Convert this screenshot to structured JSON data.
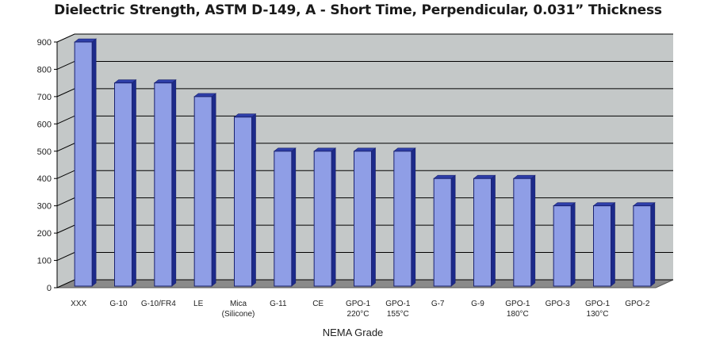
{
  "chart_data": {
    "type": "bar",
    "title": "Dielectric Strength, ASTM D-149, A - Short Time, Perpendicular, 0.031” Thickness",
    "xlabel": "NEMA Grade",
    "ylabel": "",
    "ylim": [
      0,
      900
    ],
    "yticks": [
      "0",
      "100",
      "200",
      "300",
      "400",
      "500",
      "600",
      "700",
      "800",
      "900"
    ],
    "grid": true,
    "categories": [
      [
        "XXX"
      ],
      [
        "G-10"
      ],
      [
        "G-10/FR4"
      ],
      [
        "LE"
      ],
      [
        "Mica",
        "(Silicone)"
      ],
      [
        "G-11"
      ],
      [
        "CE"
      ],
      [
        "GPO-1",
        "220°C"
      ],
      [
        "GPO-1",
        "155°C"
      ],
      [
        "G-7"
      ],
      [
        "G-9"
      ],
      [
        "GPO-1",
        "180°C"
      ],
      [
        "GPO-3"
      ],
      [
        "GPO-1",
        "130°C"
      ],
      [
        "GPO-2"
      ]
    ],
    "values": [
      900,
      750,
      750,
      700,
      625,
      500,
      500,
      500,
      500,
      400,
      400,
      400,
      300,
      300,
      300
    ],
    "colors": {
      "bar_front": "#8f9ee6",
      "bar_side": "#1c2a8a",
      "bar_top": "#2e3ea8",
      "bar_outline": "#1a2270",
      "wall": "#c4c8c8",
      "floor": "#8a8a8a",
      "floor_edge": "#5a5a5a",
      "grid": "#000000"
    }
  }
}
